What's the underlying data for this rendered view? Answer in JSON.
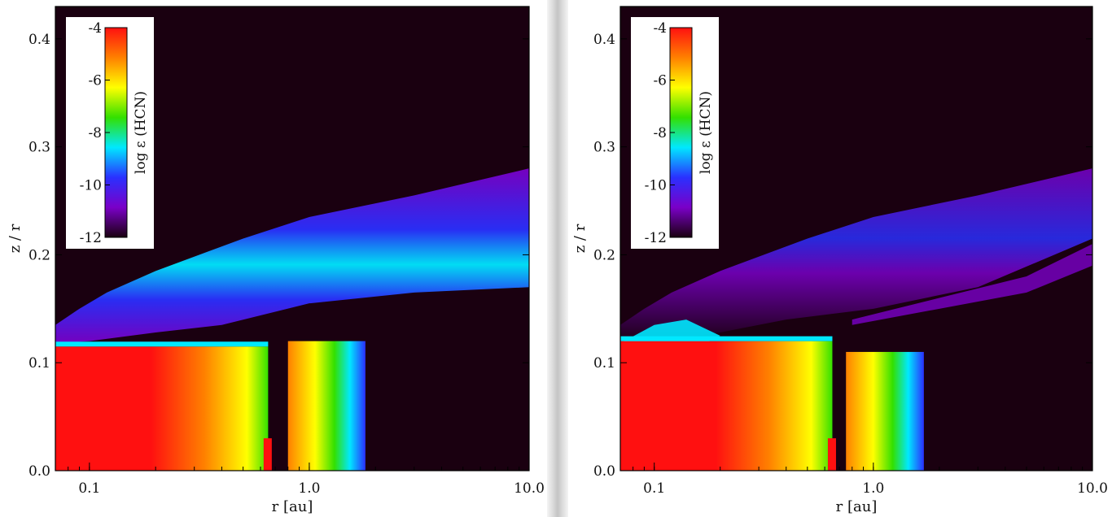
{
  "chart_data": [
    {
      "type": "heatmap",
      "panel": "left",
      "xlabel": "r [au]",
      "ylabel": "z / r",
      "xscale": "log",
      "xlim": [
        0.07,
        10.0
      ],
      "ylim": [
        0.0,
        0.43
      ],
      "xticks": [
        {
          "value": 0.1,
          "label": "0.1"
        },
        {
          "value": 1.0,
          "label": "1.0"
        },
        {
          "value": 10.0,
          "label": "10.0"
        }
      ],
      "yticks": [
        {
          "value": 0.0,
          "label": "0.0"
        },
        {
          "value": 0.1,
          "label": "0.1"
        },
        {
          "value": 0.2,
          "label": "0.2"
        },
        {
          "value": 0.3,
          "label": "0.3"
        },
        {
          "value": 0.4,
          "label": "0.4"
        }
      ],
      "colorbar": {
        "label": "log ε (HCN)",
        "range": [
          -12,
          -4
        ],
        "ticks": [
          {
            "value": -4,
            "label": "-4"
          },
          {
            "value": -6,
            "label": "-6"
          },
          {
            "value": -8,
            "label": "-8"
          },
          {
            "value": -10,
            "label": "-10"
          },
          {
            "value": -12,
            "label": "-12"
          }
        ],
        "placement": "top-left",
        "colors": [
          "#1a0010",
          "#7a00c8",
          "#2a30ff",
          "#00e8ff",
          "#33e000",
          "#ffff00",
          "#ff8000",
          "#ff1010"
        ]
      },
      "background_log_abundance": -12,
      "regions": [
        {
          "name": "inner midplane reservoir",
          "r": [
            0.07,
            0.65
          ],
          "zr": [
            0.0,
            0.115
          ],
          "log_abundance": -4.5
        },
        {
          "name": "midplane reservoir beyond gap",
          "r": [
            0.8,
            1.8
          ],
          "zr": [
            0.0,
            0.12
          ],
          "log_abundance": -5
        },
        {
          "name": "surface layer",
          "r": [
            0.07,
            10.0
          ],
          "zr": [
            0.12,
            0.28
          ],
          "log_abundance": -10
        }
      ]
    },
    {
      "type": "heatmap",
      "panel": "right",
      "xlabel": "r [au]",
      "ylabel": "z / r",
      "xscale": "log",
      "xlim": [
        0.07,
        10.0
      ],
      "ylim": [
        0.0,
        0.43
      ],
      "xticks": [
        {
          "value": 0.1,
          "label": "0.1"
        },
        {
          "value": 1.0,
          "label": "1.0"
        },
        {
          "value": 10.0,
          "label": "10.0"
        }
      ],
      "yticks": [
        {
          "value": 0.0,
          "label": "0.0"
        },
        {
          "value": 0.1,
          "label": "0.1"
        },
        {
          "value": 0.2,
          "label": "0.2"
        },
        {
          "value": 0.3,
          "label": "0.3"
        },
        {
          "value": 0.4,
          "label": "0.4"
        }
      ],
      "colorbar": {
        "label": "log ε (HCN)",
        "range": [
          -12,
          -4
        ],
        "ticks": [
          {
            "value": -4,
            "label": "-4"
          },
          {
            "value": -6,
            "label": "-6"
          },
          {
            "value": -8,
            "label": "-8"
          },
          {
            "value": -10,
            "label": "-10"
          },
          {
            "value": -12,
            "label": "-12"
          }
        ],
        "placement": "top-left",
        "colors": [
          "#1a0010",
          "#7a00c8",
          "#2a30ff",
          "#00e8ff",
          "#33e000",
          "#ffff00",
          "#ff8000",
          "#ff1010"
        ]
      },
      "background_log_abundance": -12,
      "regions": [
        {
          "name": "inner midplane reservoir",
          "r": [
            0.07,
            0.65
          ],
          "zr": [
            0.0,
            0.12
          ],
          "log_abundance": -4.5
        },
        {
          "name": "midplane reservoir beyond gap",
          "r": [
            0.75,
            1.7
          ],
          "zr": [
            0.0,
            0.11
          ],
          "log_abundance": -5.5
        },
        {
          "name": "surface layer",
          "r": [
            0.07,
            10.0
          ],
          "zr": [
            0.13,
            0.28
          ],
          "log_abundance": -11
        }
      ]
    }
  ]
}
